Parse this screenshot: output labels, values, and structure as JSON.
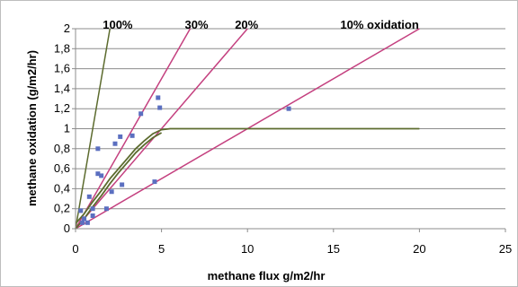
{
  "chart_data": {
    "type": "scatter",
    "title": "",
    "xlabel": "methane flux g/m2/hr",
    "ylabel": "methane oxidation (g/m2/hr)",
    "xlim": [
      0,
      25
    ],
    "ylim": [
      0,
      2
    ],
    "x_ticks": [
      "0",
      "5",
      "10",
      "15",
      "20",
      "25"
    ],
    "y_ticks": [
      "0",
      "0,2",
      "0,4",
      "0,6",
      "0,8",
      "1",
      "1,2",
      "1,4",
      "1,6",
      "1,8",
      "2"
    ],
    "grid": "horizontal",
    "colors": {
      "measurements": "#5b6fc0",
      "oxidation_lines": "#c4407f",
      "model_curve": "#5c6b2e"
    },
    "series": [
      {
        "kind": "points",
        "values": [
          [
            0.3,
            0.18
          ],
          [
            0.4,
            0.06
          ],
          [
            0.5,
            0.1
          ],
          [
            0.7,
            0.06
          ],
          [
            0.8,
            0.32
          ],
          [
            1.0,
            0.2
          ],
          [
            1.0,
            0.13
          ],
          [
            1.3,
            0.8
          ],
          [
            1.3,
            0.55
          ],
          [
            1.5,
            0.53
          ],
          [
            1.8,
            0.2
          ],
          [
            2.1,
            0.37
          ],
          [
            2.3,
            0.85
          ],
          [
            2.6,
            0.92
          ],
          [
            2.7,
            0.44
          ],
          [
            3.3,
            0.93
          ],
          [
            3.8,
            1.15
          ],
          [
            4.6,
            0.47
          ],
          [
            4.8,
            1.31
          ],
          [
            4.9,
            1.21
          ],
          [
            12.4,
            1.2
          ]
        ]
      },
      {
        "kind": "ratio-line",
        "label": "100%",
        "slope": 1.0,
        "x_end": 2.0
      },
      {
        "kind": "ratio-line",
        "label": "30%",
        "slope": 0.3,
        "x_end": 6.67
      },
      {
        "kind": "ratio-line",
        "label": "20%",
        "slope": 0.2,
        "x_end": 10.0
      },
      {
        "kind": "ratio-line",
        "label": "10% oxidation",
        "slope": 0.1,
        "x_end": 20.0
      },
      {
        "kind": "curve",
        "values": [
          [
            0,
            0.05
          ],
          [
            0.5,
            0.15
          ],
          [
            1,
            0.27
          ],
          [
            1.5,
            0.38
          ],
          [
            2,
            0.5
          ],
          [
            2.5,
            0.6
          ],
          [
            3,
            0.7
          ],
          [
            3.5,
            0.8
          ],
          [
            4,
            0.88
          ],
          [
            4.5,
            0.95
          ],
          [
            5,
            0.99
          ],
          [
            5.5,
            1.0
          ],
          [
            20,
            1.0
          ]
        ]
      },
      {
        "kind": "curve",
        "values": [
          [
            0,
            0.0
          ],
          [
            0.5,
            0.1
          ],
          [
            1,
            0.22
          ],
          [
            1.5,
            0.33
          ],
          [
            2,
            0.45
          ],
          [
            2.5,
            0.56
          ],
          [
            3,
            0.66
          ],
          [
            3.5,
            0.76
          ],
          [
            4,
            0.84
          ],
          [
            4.5,
            0.91
          ],
          [
            5,
            0.96
          ]
        ]
      }
    ]
  }
}
